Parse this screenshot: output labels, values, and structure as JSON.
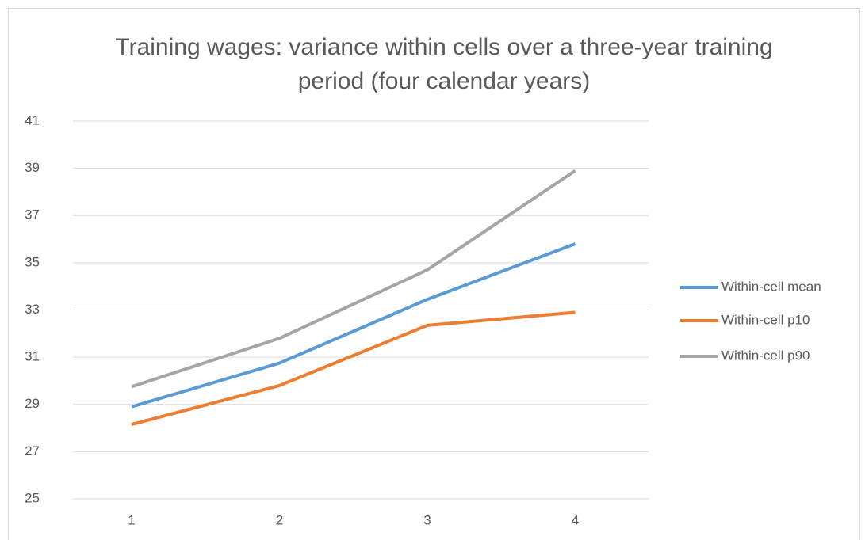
{
  "chart_data": {
    "type": "line",
    "title": "Training wages: variance within cells over a three-year training period (four calendar years)",
    "categories": [
      1,
      2,
      3,
      4
    ],
    "series": [
      {
        "name": "Within-cell mean",
        "color": "#5b9bd5",
        "values": [
          28.9,
          30.75,
          33.45,
          35.8
        ]
      },
      {
        "name": "Within-cell p10",
        "color": "#ed7d31",
        "values": [
          28.15,
          29.8,
          32.35,
          32.9
        ]
      },
      {
        "name": "Within-cell p90",
        "color": "#a5a5a5",
        "values": [
          29.75,
          31.8,
          34.7,
          38.9
        ]
      }
    ],
    "ylim": [
      25,
      41
    ],
    "yticks": [
      25,
      27,
      29,
      31,
      33,
      35,
      37,
      39,
      41
    ],
    "grid": true,
    "legend": "right"
  }
}
